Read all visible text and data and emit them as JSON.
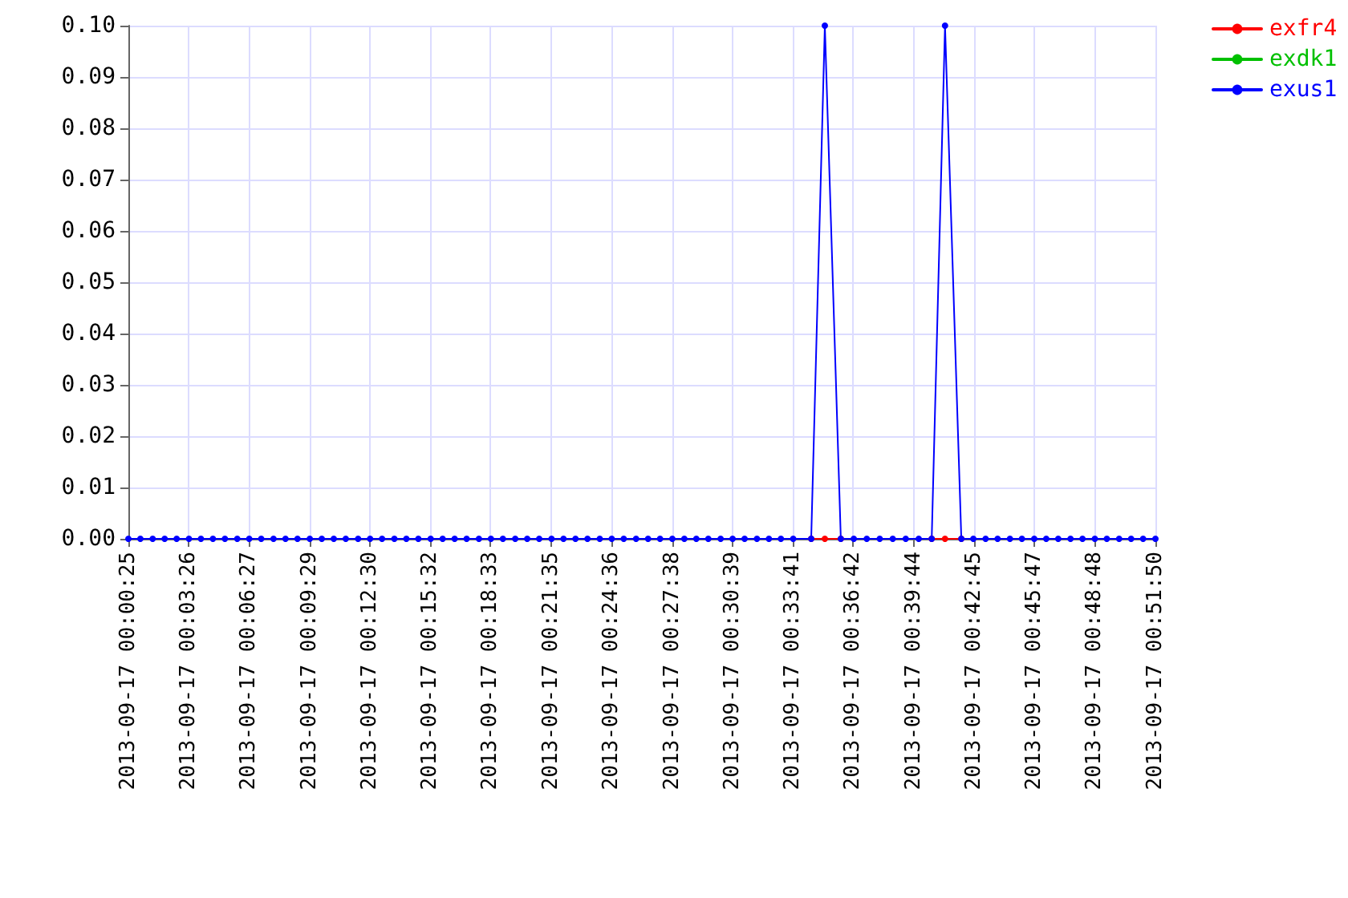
{
  "chart_data": {
    "type": "line",
    "x": [
      "2013-09-17T00:00:25",
      "2013-09-17T00:01:01",
      "2013-09-17T00:01:38",
      "2013-09-17T00:02:14",
      "2013-09-17T00:02:50",
      "2013-09-17T00:03:27",
      "2013-09-17T00:04:03",
      "2013-09-17T00:04:39",
      "2013-09-17T00:05:15",
      "2013-09-17T00:05:52",
      "2013-09-17T00:06:28",
      "2013-09-17T00:07:04",
      "2013-09-17T00:07:41",
      "2013-09-17T00:08:17",
      "2013-09-17T00:08:53",
      "2013-09-17T00:09:30",
      "2013-09-17T00:10:06",
      "2013-09-17T00:10:42",
      "2013-09-17T00:11:18",
      "2013-09-17T00:11:55",
      "2013-09-17T00:12:31",
      "2013-09-17T00:13:07",
      "2013-09-17T00:13:44",
      "2013-09-17T00:14:20",
      "2013-09-17T00:14:56",
      "2013-09-17T00:15:33",
      "2013-09-17T00:16:09",
      "2013-09-17T00:16:45",
      "2013-09-17T00:17:21",
      "2013-09-17T00:17:58",
      "2013-09-17T00:18:34",
      "2013-09-17T00:19:10",
      "2013-09-17T00:19:47",
      "2013-09-17T00:20:23",
      "2013-09-17T00:20:59",
      "2013-09-17T00:21:36",
      "2013-09-17T00:22:12",
      "2013-09-17T00:22:48",
      "2013-09-17T00:23:24",
      "2013-09-17T00:24:01",
      "2013-09-17T00:24:37",
      "2013-09-17T00:25:13",
      "2013-09-17T00:25:50",
      "2013-09-17T00:26:26",
      "2013-09-17T00:27:02",
      "2013-09-17T00:27:39",
      "2013-09-17T00:28:15",
      "2013-09-17T00:28:51",
      "2013-09-17T00:29:27",
      "2013-09-17T00:30:04",
      "2013-09-17T00:30:40",
      "2013-09-17T00:31:16",
      "2013-09-17T00:31:53",
      "2013-09-17T00:32:29",
      "2013-09-17T00:33:05",
      "2013-09-17T00:33:42",
      "2013-09-17T00:34:36",
      "2013-09-17T00:35:17",
      "2013-09-17T00:36:05",
      "2013-09-17T00:36:44",
      "2013-09-17T00:37:23",
      "2013-09-17T00:38:02",
      "2013-09-17T00:38:41",
      "2013-09-17T00:39:20",
      "2013-09-17T00:39:59",
      "2013-09-17T00:40:38",
      "2013-09-17T00:41:18",
      "2013-09-17T00:42:07",
      "2013-09-17T00:42:43",
      "2013-09-17T00:43:20",
      "2013-09-17T00:43:56",
      "2013-09-17T00:44:33",
      "2013-09-17T00:45:09",
      "2013-09-17T00:45:46",
      "2013-09-17T00:46:22",
      "2013-09-17T00:46:58",
      "2013-09-17T00:47:35",
      "2013-09-17T00:48:11",
      "2013-09-17T00:48:48",
      "2013-09-17T00:49:24",
      "2013-09-17T00:50:01",
      "2013-09-17T00:50:37",
      "2013-09-17T00:51:13",
      "2013-09-17T00:51:50"
    ],
    "series": [
      {
        "name": "exfr4",
        "color": "#ff0000",
        "values": [
          null,
          null,
          null,
          null,
          null,
          null,
          null,
          null,
          null,
          null,
          null,
          null,
          null,
          null,
          null,
          null,
          null,
          null,
          null,
          null,
          null,
          null,
          null,
          null,
          null,
          null,
          null,
          null,
          null,
          null,
          null,
          null,
          null,
          null,
          null,
          null,
          null,
          null,
          null,
          null,
          null,
          null,
          null,
          null,
          null,
          null,
          null,
          null,
          null,
          null,
          null,
          null,
          null,
          null,
          null,
          null,
          0,
          0,
          0,
          null,
          null,
          null,
          null,
          null,
          null,
          0,
          0,
          0,
          null,
          null,
          null,
          null,
          null,
          null,
          null,
          null,
          null,
          null,
          null,
          null,
          null,
          null,
          null,
          null
        ]
      },
      {
        "name": "exdk1",
        "color": "#00c000",
        "values": [
          null,
          null,
          null,
          null,
          null,
          null,
          null,
          null,
          null,
          null,
          null,
          null,
          null,
          null,
          null,
          null,
          null,
          null,
          null,
          null,
          null,
          null,
          null,
          null,
          null,
          null,
          null,
          null,
          null,
          null,
          null,
          null,
          null,
          null,
          null,
          null,
          null,
          null,
          null,
          null,
          null,
          null,
          null,
          null,
          null,
          null,
          null,
          null,
          null,
          null,
          null,
          null,
          null,
          null,
          null,
          null,
          null,
          null,
          null,
          null,
          null,
          null,
          null,
          null,
          null,
          null,
          null,
          null,
          null,
          null,
          null,
          null,
          null,
          null,
          null,
          null,
          null,
          null,
          null,
          null,
          null,
          null,
          null,
          null
        ]
      },
      {
        "name": "exus1",
        "color": "#0000ff",
        "values": [
          0,
          0,
          0,
          0,
          0,
          0,
          0,
          0,
          0,
          0,
          0,
          0,
          0,
          0,
          0,
          0,
          0,
          0,
          0,
          0,
          0,
          0,
          0,
          0,
          0,
          0,
          0,
          0,
          0,
          0,
          0,
          0,
          0,
          0,
          0,
          0,
          0,
          0,
          0,
          0,
          0,
          0,
          0,
          0,
          0,
          0,
          0,
          0,
          0,
          0,
          0,
          0,
          0,
          0,
          0,
          0,
          0,
          0.1,
          0,
          0,
          0,
          0,
          0,
          0,
          0,
          0,
          0.1,
          0,
          0,
          0,
          0,
          0,
          0,
          0,
          0,
          0,
          0,
          0,
          0,
          0,
          0,
          0,
          0,
          0
        ]
      }
    ],
    "xlim": [
      "2013-09-17T00:00:25",
      "2013-09-17T00:51:50"
    ],
    "xticks": [
      {
        "value": "2013-09-17T00:00:25",
        "label": "2013-09-17 00:00:25"
      },
      {
        "value": "2013-09-17T00:03:26",
        "label": "2013-09-17 00:03:26"
      },
      {
        "value": "2013-09-17T00:06:27",
        "label": "2013-09-17 00:06:27"
      },
      {
        "value": "2013-09-17T00:09:29",
        "label": "2013-09-17 00:09:29"
      },
      {
        "value": "2013-09-17T00:12:30",
        "label": "2013-09-17 00:12:30"
      },
      {
        "value": "2013-09-17T00:15:32",
        "label": "2013-09-17 00:15:32"
      },
      {
        "value": "2013-09-17T00:18:33",
        "label": "2013-09-17 00:18:33"
      },
      {
        "value": "2013-09-17T00:21:35",
        "label": "2013-09-17 00:21:35"
      },
      {
        "value": "2013-09-17T00:24:36",
        "label": "2013-09-17 00:24:36"
      },
      {
        "value": "2013-09-17T00:27:38",
        "label": "2013-09-17 00:27:38"
      },
      {
        "value": "2013-09-17T00:30:39",
        "label": "2013-09-17 00:30:39"
      },
      {
        "value": "2013-09-17T00:33:41",
        "label": "2013-09-17 00:33:41"
      },
      {
        "value": "2013-09-17T00:36:42",
        "label": "2013-09-17 00:36:42"
      },
      {
        "value": "2013-09-17T00:39:44",
        "label": "2013-09-17 00:39:44"
      },
      {
        "value": "2013-09-17T00:42:45",
        "label": "2013-09-17 00:42:45"
      },
      {
        "value": "2013-09-17T00:45:47",
        "label": "2013-09-17 00:45:47"
      },
      {
        "value": "2013-09-17T00:48:48",
        "label": "2013-09-17 00:48:48"
      },
      {
        "value": "2013-09-17T00:51:50",
        "label": "2013-09-17 00:51:50"
      }
    ],
    "ylim": [
      0,
      0.1
    ],
    "yticks": [
      {
        "value": 0,
        "label": "0.00"
      },
      {
        "value": 0.01,
        "label": "0.01"
      },
      {
        "value": 0.02,
        "label": "0.02"
      },
      {
        "value": 0.03,
        "label": "0.03"
      },
      {
        "value": 0.04,
        "label": "0.04"
      },
      {
        "value": 0.05,
        "label": "0.05"
      },
      {
        "value": 0.06,
        "label": "0.06"
      },
      {
        "value": 0.07,
        "label": "0.07"
      },
      {
        "value": 0.08,
        "label": "0.08"
      },
      {
        "value": 0.09,
        "label": "0.09"
      },
      {
        "value": 0.1,
        "label": "0.10"
      }
    ],
    "grid": true,
    "legend": "top right",
    "marker": "circle",
    "line_style": "solid"
  }
}
